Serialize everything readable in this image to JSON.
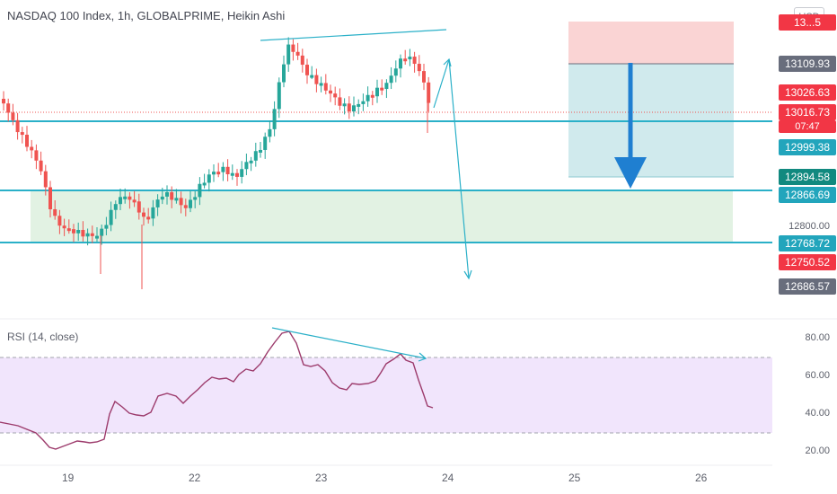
{
  "header": {
    "title": "NASDAQ 100 Index, 1h, GLOBALPRIME, Heikin Ashi",
    "currency": "USD"
  },
  "price_axis": {
    "tags": [
      {
        "label": "13...5",
        "color": "#f23645"
      },
      {
        "label": "13109.93",
        "color": "#686d7c"
      },
      {
        "label": "13026.63",
        "color": "#f23645"
      },
      {
        "label": "13016.73",
        "color": "#f23645"
      },
      {
        "label": "07:47",
        "color": "#f23645"
      },
      {
        "label": "12999.38",
        "color": "#22a5bc"
      },
      {
        "label": "12894.58",
        "color": "#11897f"
      },
      {
        "label": "12866.69",
        "color": "#22a5bc"
      },
      {
        "label": "12768.72",
        "color": "#22a5bc"
      },
      {
        "label": "12750.52",
        "color": "#f23645"
      },
      {
        "label": "12686.57",
        "color": "#686d7c"
      }
    ],
    "plain_labels": [
      "12800.00"
    ]
  },
  "rsi": {
    "title": "RSI (14, close)",
    "axis_labels": [
      "80.00",
      "60.00",
      "40.00",
      "20.00"
    ],
    "upper_band": 70,
    "lower_band": 30
  },
  "time_axis": {
    "labels": [
      "19",
      "22",
      "23",
      "24",
      "25",
      "26"
    ]
  },
  "colors": {
    "bull": "#26a69a",
    "bear": "#ef5350",
    "line": "#2ab0c8",
    "rsi_line": "#9c3a6b",
    "rsi_band": "#e9dbfa",
    "range_zone": "#d7eed8",
    "stop_zone": "#fbd0d0",
    "target_zone": "#c9e7ea",
    "arrow": "#1f7fd1"
  }
}
